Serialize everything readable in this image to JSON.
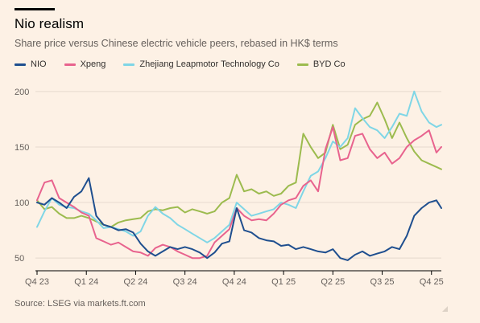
{
  "header": {
    "title": "Nio realism",
    "subtitle": "Share price versus Chinese electric vehicle peers, rebased in HK$ terms"
  },
  "source": "Source: LSEG via markets.ft.com",
  "colors": {
    "background": "#fdf1e5",
    "grid": "#e6d9ce",
    "NIO": "#1f4f8f",
    "Xpeng": "#e8638e",
    "Zhejiang": "#7fd6e6",
    "BYD": "#9cbb4e"
  },
  "chart_data": {
    "type": "line",
    "title": "Nio realism",
    "subtitle": "Share price versus Chinese electric vehicle peers, rebased in HK$ terms",
    "xlabel": "",
    "ylabel": "",
    "ylim": [
      40,
      210
    ],
    "yticks": [
      50,
      100,
      150,
      200
    ],
    "grid": true,
    "legend_position": "top-left",
    "categories": [
      "Q4 23",
      "Q1 24",
      "Q2 24",
      "Q3 24",
      "Q4 24",
      "Q1 25",
      "Q2 25",
      "Q3 25",
      "Q4 25"
    ],
    "x": [
      0,
      0.15,
      0.3,
      0.45,
      0.6,
      0.75,
      0.9,
      1.05,
      1.2,
      1.35,
      1.5,
      1.65,
      1.8,
      1.95,
      2.1,
      2.25,
      2.4,
      2.55,
      2.7,
      2.85,
      3.0,
      3.15,
      3.3,
      3.45,
      3.6,
      3.75,
      3.9,
      4.05,
      4.2,
      4.35,
      4.5,
      4.65,
      4.8,
      4.95,
      5.1,
      5.25,
      5.4,
      5.55,
      5.7,
      5.85,
      6.0,
      6.15,
      6.3,
      6.45,
      6.6,
      6.75,
      6.9,
      7.05,
      7.2,
      7.35,
      7.5,
      7.65,
      7.8,
      7.95,
      8.1,
      8.2
    ],
    "series": [
      {
        "name": "NIO",
        "color": "#1f4f8f",
        "values": [
          100,
          98,
          104,
          100,
          95,
          105,
          110,
          122,
          88,
          80,
          78,
          75,
          76,
          73,
          63,
          56,
          52,
          56,
          60,
          58,
          60,
          58,
          55,
          50,
          55,
          63,
          65,
          95,
          75,
          73,
          68,
          66,
          65,
          61,
          62,
          58,
          60,
          58,
          56,
          55,
          58,
          50,
          48,
          53,
          56,
          52,
          54,
          56,
          60,
          58,
          70,
          88,
          95,
          100,
          102,
          95
        ]
      },
      {
        "name": "Xpeng",
        "color": "#e8638e",
        "values": [
          102,
          118,
          120,
          104,
          100,
          96,
          91,
          88,
          68,
          65,
          62,
          64,
          60,
          56,
          55,
          52,
          59,
          62,
          60,
          56,
          53,
          50,
          50,
          52,
          64,
          70,
          76,
          95,
          88,
          84,
          85,
          84,
          90,
          98,
          102,
          104,
          115,
          120,
          110,
          148,
          168,
          138,
          140,
          160,
          162,
          148,
          140,
          145,
          135,
          140,
          150,
          156,
          160,
          165,
          145,
          150
        ]
      },
      {
        "name": "Zhejiang Leapmotor Technology Co",
        "color": "#7fd6e6",
        "values": [
          78,
          92,
          104,
          98,
          96,
          95,
          92,
          90,
          84,
          77,
          78,
          76,
          74,
          70,
          74,
          88,
          96,
          90,
          86,
          80,
          76,
          72,
          68,
          64,
          68,
          74,
          80,
          100,
          94,
          88,
          90,
          92,
          94,
          100,
          98,
          95,
          110,
          124,
          128,
          140,
          155,
          150,
          158,
          185,
          176,
          168,
          165,
          158,
          168,
          180,
          178,
          200,
          182,
          172,
          168,
          170
        ]
      },
      {
        "name": "BYD Co",
        "color": "#9cbb4e",
        "values": [
          102,
          94,
          96,
          90,
          86,
          86,
          88,
          86,
          83,
          80,
          78,
          82,
          84,
          85,
          86,
          92,
          94,
          93,
          95,
          96,
          91,
          94,
          92,
          90,
          92,
          100,
          104,
          125,
          110,
          112,
          108,
          110,
          106,
          108,
          115,
          118,
          162,
          150,
          140,
          145,
          170,
          148,
          152,
          170,
          175,
          178,
          190,
          175,
          158,
          172,
          158,
          146,
          138,
          135,
          132,
          130
        ]
      }
    ]
  }
}
